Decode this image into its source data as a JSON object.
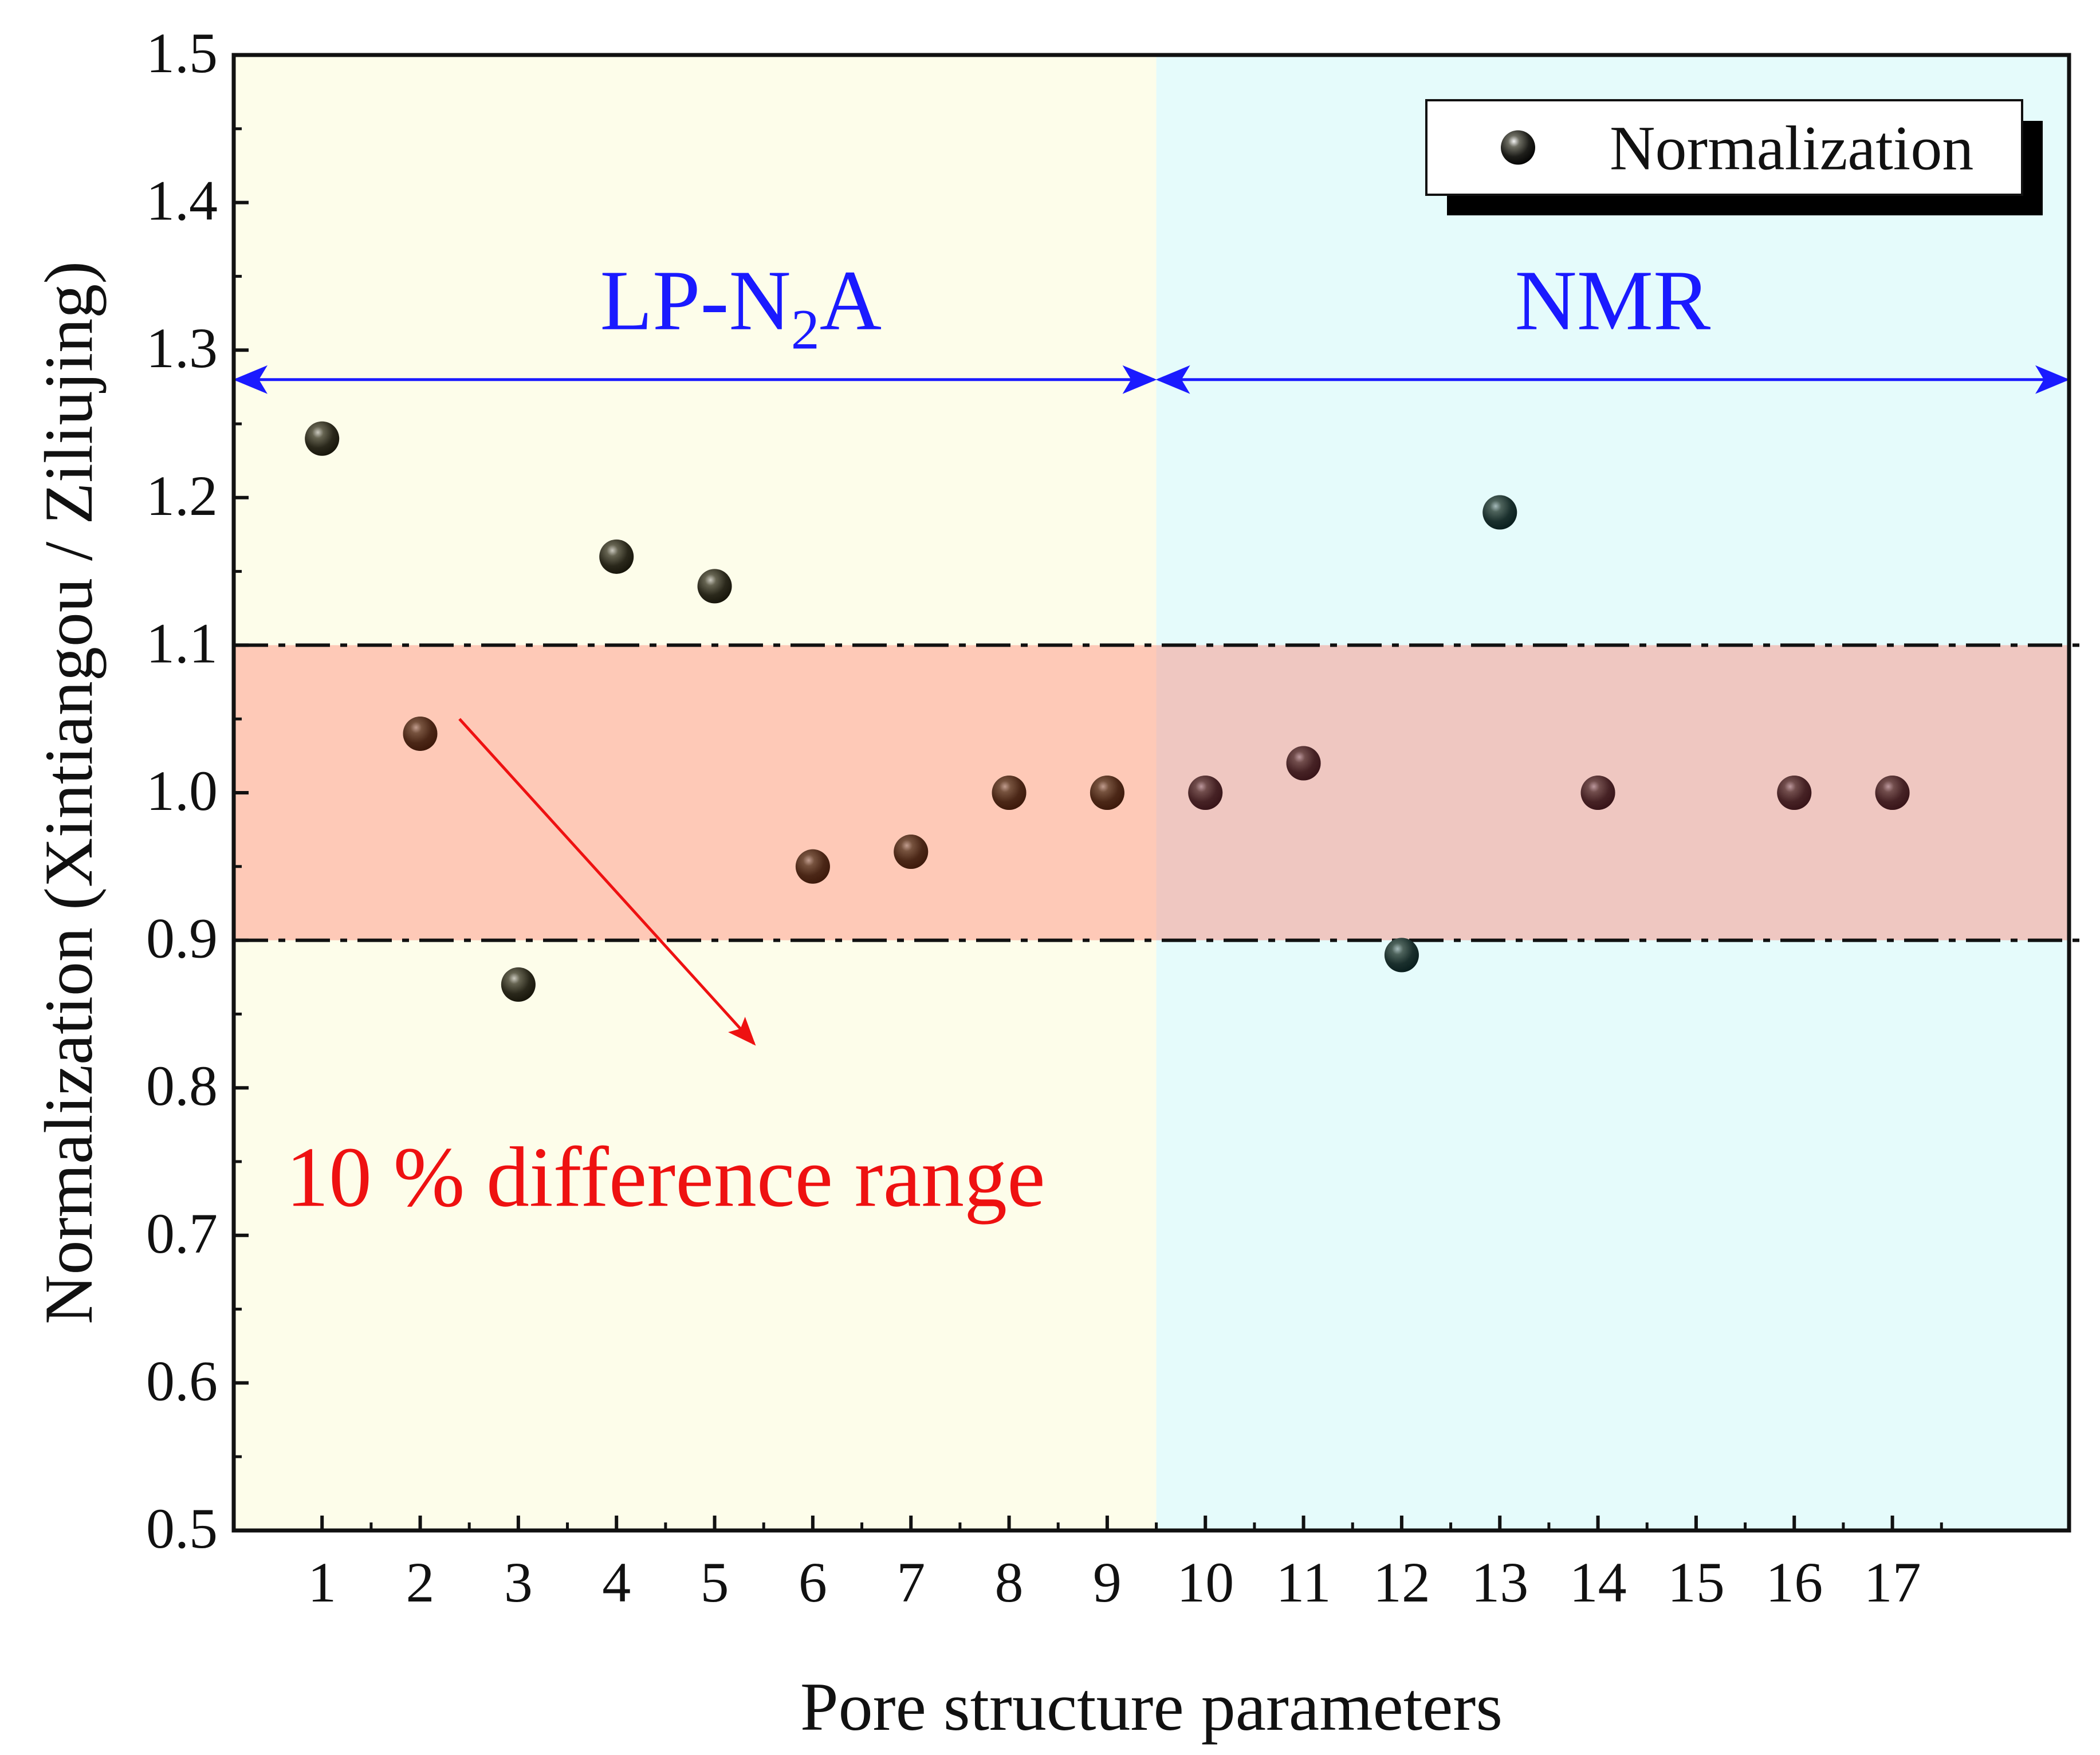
{
  "chart_data": {
    "type": "scatter",
    "xlabel": "Pore structure parameters",
    "ylabel": "Normalization (Xintiangou / Ziliujing)",
    "xlim": [
      0.1,
      18.8
    ],
    "ylim": [
      0.5,
      1.5
    ],
    "xticks": [
      1,
      2,
      3,
      4,
      5,
      6,
      7,
      8,
      9,
      10,
      11,
      12,
      13,
      14,
      15,
      16,
      17
    ],
    "xtick_labels": [
      "1",
      "2",
      "3",
      "4",
      "5",
      "6",
      "7",
      "8",
      "9",
      "10",
      "11",
      "12",
      "13",
      "14",
      "15",
      "16",
      "17"
    ],
    "yticks": [
      0.5,
      0.6,
      0.7,
      0.8,
      0.9,
      1.0,
      1.1,
      1.2,
      1.3,
      1.4,
      1.5
    ],
    "ytick_labels": [
      "0.5",
      "0.6",
      "0.7",
      "0.8",
      "0.9",
      "1.0",
      "1.1",
      "1.2",
      "1.3",
      "1.4",
      "1.5"
    ],
    "series": [
      {
        "name": "Normalization",
        "points": [
          {
            "x": 1,
            "y": 1.24
          },
          {
            "x": 2,
            "y": 1.04
          },
          {
            "x": 3,
            "y": 0.87
          },
          {
            "x": 4,
            "y": 1.16
          },
          {
            "x": 5,
            "y": 1.14
          },
          {
            "x": 6,
            "y": 0.95
          },
          {
            "x": 7,
            "y": 0.96
          },
          {
            "x": 8,
            "y": 1.0
          },
          {
            "x": 9,
            "y": 1.0
          },
          {
            "x": 10,
            "y": 1.0
          },
          {
            "x": 11,
            "y": 1.02
          },
          {
            "x": 12,
            "y": 0.89
          },
          {
            "x": 13,
            "y": 1.19
          },
          {
            "x": 14,
            "y": 1.0
          },
          {
            "x": 16,
            "y": 1.0
          },
          {
            "x": 17,
            "y": 1.0
          }
        ]
      }
    ],
    "legend": {
      "label": "Normalization",
      "position": "top-right"
    },
    "regions": [
      {
        "name": "LP-N2A",
        "label_main": "LP-N",
        "label_sub": "2",
        "label_tail": "A",
        "x_range": [
          0.1,
          9.5
        ],
        "color": "#fdfdea"
      },
      {
        "name": "NMR",
        "label": "NMR",
        "x_range": [
          9.5,
          18.8
        ],
        "color": "#e5fbfb"
      }
    ],
    "band": {
      "y_range": [
        0.9,
        1.1
      ],
      "lines": [
        0.9,
        1.1
      ],
      "label": "10 % difference range"
    },
    "range_arrow_y": 1.28,
    "annotation_color": "#1a1aff",
    "band_label_color": "#ee1111",
    "arrow": {
      "from": [
        2.4,
        1.05
      ],
      "to": [
        5.4,
        0.83
      ]
    }
  }
}
